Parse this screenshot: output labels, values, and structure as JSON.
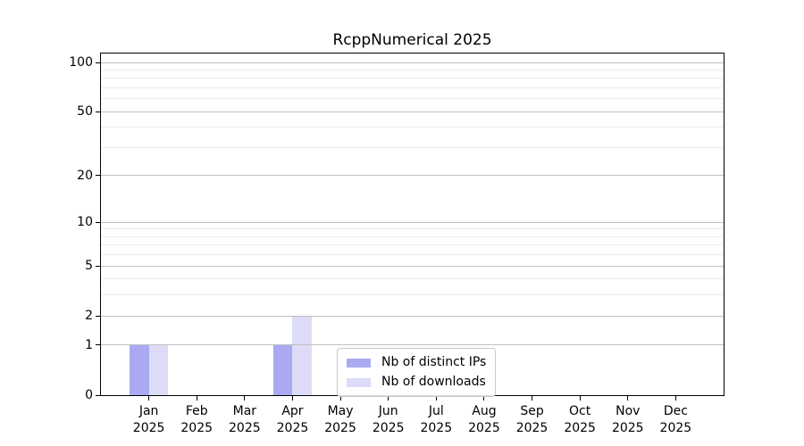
{
  "title": "RcppNumerical 2025",
  "chart_data": {
    "type": "bar",
    "title": "RcppNumerical 2025",
    "categories": [
      "Jan 2025",
      "Feb 2025",
      "Mar 2025",
      "Apr 2025",
      "May 2025",
      "Jun 2025",
      "Jul 2025",
      "Aug 2025",
      "Sep 2025",
      "Oct 2025",
      "Nov 2025",
      "Dec 2025"
    ],
    "series": [
      {
        "name": "Nb of distinct IPs",
        "color": "#aaaaf2",
        "values": [
          1,
          0,
          0,
          1,
          0,
          0,
          0,
          0,
          0,
          0,
          0,
          0
        ]
      },
      {
        "name": "Nb of downloads",
        "color": "#dcdcf8",
        "values": [
          1,
          0,
          0,
          2,
          0,
          0,
          0,
          0,
          0,
          0,
          0,
          0
        ]
      }
    ],
    "xlabel": "",
    "ylabel": "",
    "yscale": "log1p",
    "ylim": [
      0,
      113
    ],
    "y_major_ticks": [
      0,
      1,
      2,
      5,
      10,
      20,
      50,
      100
    ],
    "y_minor_ticks": [
      3,
      4,
      6,
      7,
      8,
      9,
      30,
      40,
      60,
      70,
      80,
      90
    ],
    "grid": "horizontal major+minor, drawn over bars",
    "legend_position": "inside lower center"
  },
  "legend": {
    "items": [
      {
        "label": "Nb of distinct IPs",
        "color": "#aaaaf2"
      },
      {
        "label": "Nb of downloads",
        "color": "#dcdcf8"
      }
    ]
  },
  "colors": {
    "background": "#ffffff",
    "axis": "#000000",
    "grid_major": "#bfbfbf",
    "grid_minor": "#ececec",
    "legend_border": "#c9c9c9"
  }
}
